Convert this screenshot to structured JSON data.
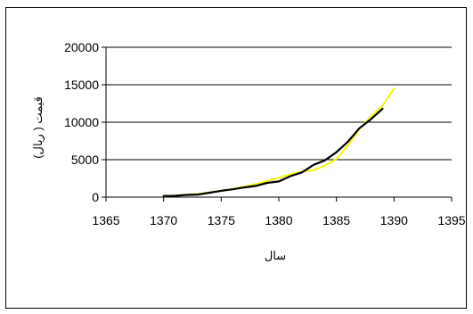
{
  "chart_data": {
    "type": "line",
    "title": "",
    "xlabel": "سال",
    "ylabel": "قیمت ( ریال)",
    "xlim": [
      1365,
      1395
    ],
    "ylim": [
      0,
      20000
    ],
    "x_ticks": [
      1365,
      1370,
      1375,
      1380,
      1385,
      1390,
      1395
    ],
    "y_ticks": [
      0,
      5000,
      10000,
      15000,
      20000
    ],
    "x_tick_labels": [
      "1365",
      "1370",
      "1375",
      "1380",
      "1385",
      "1390",
      "1395"
    ],
    "y_tick_labels": [
      "0",
      "5000",
      "10000",
      "15000",
      "20000"
    ],
    "grid": "horizontal",
    "legend": "none",
    "series": [
      {
        "color": "#f5f500",
        "x": [
          1370,
          1371,
          1372,
          1373,
          1374,
          1375,
          1376,
          1377,
          1378,
          1379,
          1380,
          1381,
          1382,
          1383,
          1384,
          1385,
          1386,
          1387,
          1388,
          1389,
          1390
        ],
        "y": [
          150,
          200,
          320,
          420,
          620,
          850,
          1100,
          1400,
          1750,
          2150,
          2600,
          3050,
          3400,
          3600,
          4200,
          5100,
          6900,
          9100,
          10800,
          12200,
          14500
        ]
      },
      {
        "color": "#000000",
        "x": [
          1370,
          1371,
          1372,
          1373,
          1374,
          1375,
          1376,
          1377,
          1378,
          1379,
          1380,
          1381,
          1382,
          1383,
          1384,
          1385,
          1386,
          1387,
          1388,
          1389
        ],
        "y": [
          150,
          180,
          300,
          350,
          600,
          850,
          1050,
          1300,
          1500,
          1900,
          2100,
          2800,
          3300,
          4300,
          4900,
          6000,
          7400,
          9200,
          10400,
          11800
        ]
      }
    ]
  }
}
